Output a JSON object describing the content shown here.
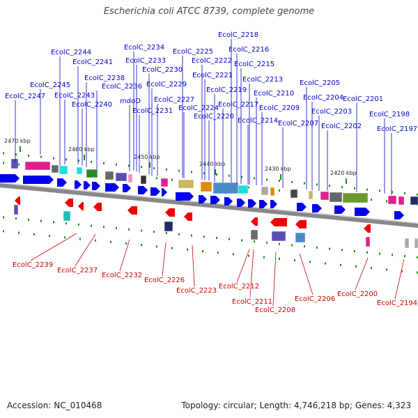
{
  "title": "Escherichia coli ATCC 8739, complete genome",
  "footer": {
    "accession": "Accession: NC_010468",
    "summary": "Topology: circular; Length: 4,746,218 bp; Genes: 4,323"
  },
  "colors": {
    "top_label": "#0000cc",
    "bottom_label": "#cc0000",
    "forward_arrow": "#0000ee",
    "reverse_arrow": "#ee0000",
    "backbone": "#888888",
    "tick_green": "#1a8a1a"
  },
  "scale": [
    {
      "label": "2470 kbp"
    },
    {
      "label": "2460 kbp"
    },
    {
      "label": "2450 kbp"
    },
    {
      "label": "2440 kbp"
    },
    {
      "label": "2430 kbp"
    },
    {
      "label": "2420 kbp"
    }
  ],
  "top_genes": [
    "EcolC_2247",
    "EcolC_2245",
    "EcolC_2244",
    "EcolC_2243",
    "EcolC_2241",
    "EcolC_2240",
    "EcolC_2238",
    "EcolC_2236",
    "EcolC_2234",
    "EcolC_2233",
    "mdoD",
    "EcolC_2231",
    "EcolC_2230",
    "EcolC_2229",
    "EcolC_2227",
    "EcolC_2225",
    "EcolC_2224",
    "EcolC_2222",
    "EcolC_2221",
    "EcolC_2220",
    "EcolC_2219",
    "EcolC_2218",
    "EcolC_2217",
    "EcolC_2216",
    "EcolC_2215",
    "EcolC_2214",
    "EcolC_2213",
    "EcolC_2210",
    "EcolC_2209",
    "EcolC_2207",
    "EcolC_2205",
    "EcolC_2204",
    "EcolC_2203",
    "EcolC_2202",
    "EcolC_2201",
    "EcolC_2198",
    "EcolC_2197"
  ],
  "bottom_genes": [
    "EcolC_2239",
    "EcolC_2237",
    "EcolC_2232",
    "EcolC_2226",
    "EcolC_2223",
    "EcolC_2212",
    "EcolC_2211",
    "EcolC_2208",
    "EcolC_2206",
    "EcolC_2200",
    "EcolC_2194"
  ]
}
